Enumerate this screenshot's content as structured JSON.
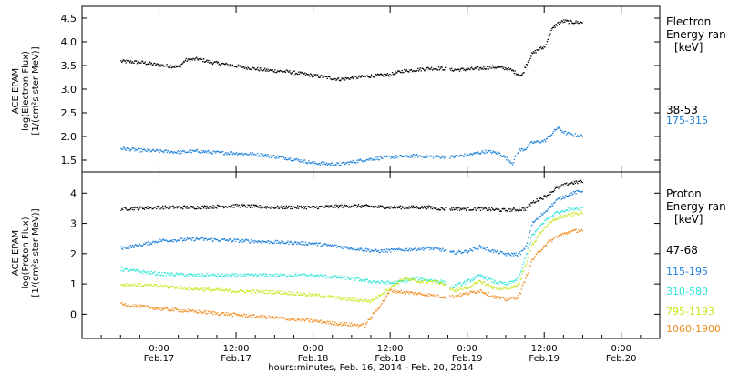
{
  "chart_data": [
    {
      "type": "scatter",
      "panel": "electron",
      "ylabel_lines": [
        "ACE EPAM",
        "log(Electron Flux)",
        "[1/(cm²s ster MeV)]"
      ],
      "ylim": [
        1.25,
        4.75
      ],
      "yticks": [
        "1.5",
        "2.0",
        "2.5",
        "3.0",
        "3.5",
        "4.0",
        "4.5"
      ],
      "legend_title": [
        "Electron",
        "Energy ran",
        "[keV]"
      ],
      "data_gaps_hours": [
        [
          44.5,
          45.2
        ]
      ],
      "series": [
        {
          "name": "38-53",
          "color": "#000000",
          "points": [
            [
              -6,
              3.6
            ],
            [
              -3,
              3.58
            ],
            [
              0,
              3.52
            ],
            [
              3,
              3.48
            ],
            [
              4,
              3.62
            ],
            [
              6,
              3.65
            ],
            [
              8,
              3.58
            ],
            [
              12,
              3.5
            ],
            [
              16,
              3.42
            ],
            [
              20,
              3.38
            ],
            [
              24,
              3.3
            ],
            [
              28,
              3.22
            ],
            [
              32,
              3.28
            ],
            [
              36,
              3.32
            ],
            [
              38,
              3.4
            ],
            [
              40,
              3.42
            ],
            [
              42,
              3.45
            ],
            [
              44,
              3.45
            ],
            [
              45.5,
              3.42
            ],
            [
              48,
              3.43
            ],
            [
              50,
              3.45
            ],
            [
              52,
              3.48
            ],
            [
              54,
              3.45
            ],
            [
              55,
              3.4
            ],
            [
              56,
              3.32
            ],
            [
              56.5,
              3.3
            ],
            [
              57,
              3.5
            ],
            [
              58,
              3.75
            ],
            [
              59,
              3.85
            ],
            [
              60,
              3.9
            ],
            [
              61,
              4.25
            ],
            [
              62,
              4.4
            ],
            [
              63,
              4.45
            ],
            [
              64,
              4.43
            ],
            [
              66,
              4.42
            ]
          ]
        },
        {
          "name": "175-315",
          "color": "#1a7fd9",
          "points": [
            [
              -6,
              1.76
            ],
            [
              -3,
              1.72
            ],
            [
              0,
              1.7
            ],
            [
              3,
              1.68
            ],
            [
              6,
              1.7
            ],
            [
              9,
              1.67
            ],
            [
              12,
              1.66
            ],
            [
              16,
              1.62
            ],
            [
              20,
              1.55
            ],
            [
              24,
              1.45
            ],
            [
              28,
              1.42
            ],
            [
              32,
              1.52
            ],
            [
              36,
              1.58
            ],
            [
              40,
              1.6
            ],
            [
              44,
              1.58
            ],
            [
              45.5,
              1.58
            ],
            [
              48,
              1.62
            ],
            [
              51,
              1.7
            ],
            [
              53,
              1.65
            ],
            [
              54,
              1.55
            ],
            [
              55,
              1.45
            ],
            [
              56,
              1.72
            ],
            [
              57,
              1.75
            ],
            [
              58,
              1.88
            ],
            [
              60,
              1.92
            ],
            [
              61,
              2.05
            ],
            [
              62,
              2.2
            ],
            [
              63,
              2.1
            ],
            [
              64,
              2.05
            ],
            [
              66,
              2.02
            ]
          ]
        }
      ]
    },
    {
      "type": "scatter",
      "panel": "proton",
      "ylabel_lines": [
        "ACE EPAM",
        "log(Proton Flux)",
        "[1/(cm²s ster MeV)]"
      ],
      "ylim": [
        -0.8,
        4.7
      ],
      "yticks": [
        "0",
        "1",
        "2",
        "3",
        "4"
      ],
      "legend_title": [
        "Proton",
        "Energy ran",
        "[keV]"
      ],
      "data_gaps_hours": [
        [
          44.5,
          45.2
        ]
      ],
      "series": [
        {
          "name": "47-68",
          "color": "#000000",
          "points": [
            [
              -6,
              3.5
            ],
            [
              0,
              3.55
            ],
            [
              6,
              3.55
            ],
            [
              12,
              3.6
            ],
            [
              18,
              3.55
            ],
            [
              24,
              3.55
            ],
            [
              30,
              3.6
            ],
            [
              36,
              3.55
            ],
            [
              42,
              3.55
            ],
            [
              44,
              3.5
            ],
            [
              45.5,
              3.5
            ],
            [
              50,
              3.5
            ],
            [
              54,
              3.45
            ],
            [
              57,
              3.5
            ],
            [
              58,
              3.7
            ],
            [
              60,
              3.9
            ],
            [
              62,
              4.2
            ],
            [
              64,
              4.35
            ],
            [
              66,
              4.4
            ]
          ]
        },
        {
          "name": "115-195",
          "color": "#1a7fd9",
          "points": [
            [
              -6,
              2.2
            ],
            [
              -3,
              2.3
            ],
            [
              0,
              2.45
            ],
            [
              6,
              2.5
            ],
            [
              12,
              2.45
            ],
            [
              18,
              2.4
            ],
            [
              24,
              2.35
            ],
            [
              30,
              2.2
            ],
            [
              34,
              2.1
            ],
            [
              38,
              2.15
            ],
            [
              42,
              2.2
            ],
            [
              44,
              2.15
            ],
            [
              45.5,
              2.05
            ],
            [
              48,
              2.1
            ],
            [
              50,
              2.25
            ],
            [
              52,
              2.1
            ],
            [
              54,
              2.0
            ],
            [
              56,
              2.0
            ],
            [
              57,
              2.2
            ],
            [
              58,
              3.0
            ],
            [
              59,
              3.2
            ],
            [
              60,
              3.4
            ],
            [
              62,
              3.8
            ],
            [
              64,
              4.0
            ],
            [
              66,
              4.1
            ]
          ]
        },
        {
          "name": "310-580",
          "color": "#2ee6d6",
          "points": [
            [
              -6,
              1.5
            ],
            [
              0,
              1.35
            ],
            [
              6,
              1.3
            ],
            [
              12,
              1.3
            ],
            [
              18,
              1.3
            ],
            [
              24,
              1.3
            ],
            [
              30,
              1.2
            ],
            [
              33,
              1.1
            ],
            [
              36,
              1.05
            ],
            [
              38,
              1.1
            ],
            [
              40,
              1.2
            ],
            [
              42,
              1.15
            ],
            [
              44,
              1.1
            ],
            [
              45.5,
              0.9
            ],
            [
              48,
              1.1
            ],
            [
              50,
              1.3
            ],
            [
              52,
              1.1
            ],
            [
              54,
              1.0
            ],
            [
              56,
              1.2
            ],
            [
              58,
              2.6
            ],
            [
              60,
              3.1
            ],
            [
              62,
              3.4
            ],
            [
              64,
              3.5
            ],
            [
              66,
              3.55
            ]
          ]
        },
        {
          "name": "795-1193",
          "color": "#c7e619",
          "points": [
            [
              -6,
              1.0
            ],
            [
              0,
              0.95
            ],
            [
              6,
              0.85
            ],
            [
              12,
              0.78
            ],
            [
              18,
              0.75
            ],
            [
              24,
              0.65
            ],
            [
              30,
              0.5
            ],
            [
              33,
              0.45
            ],
            [
              36,
              0.9
            ],
            [
              38,
              1.2
            ],
            [
              40,
              1.1
            ],
            [
              42,
              1.1
            ],
            [
              44,
              1.05
            ],
            [
              45.5,
              0.8
            ],
            [
              48,
              0.9
            ],
            [
              50,
              1.1
            ],
            [
              52,
              0.9
            ],
            [
              54,
              0.85
            ],
            [
              56,
              1.0
            ],
            [
              58,
              2.3
            ],
            [
              60,
              2.9
            ],
            [
              62,
              3.2
            ],
            [
              64,
              3.3
            ],
            [
              66,
              3.4
            ]
          ]
        },
        {
          "name": "1060-1900",
          "color": "#f08c1e",
          "points": [
            [
              -6,
              0.35
            ],
            [
              0,
              0.2
            ],
            [
              6,
              0.1
            ],
            [
              12,
              0.0
            ],
            [
              18,
              -0.1
            ],
            [
              24,
              -0.2
            ],
            [
              28,
              -0.3
            ],
            [
              32,
              -0.35
            ],
            [
              34,
              0.2
            ],
            [
              36,
              0.8
            ],
            [
              38,
              0.75
            ],
            [
              40,
              0.7
            ],
            [
              42,
              0.65
            ],
            [
              44,
              0.6
            ],
            [
              45.5,
              0.6
            ],
            [
              48,
              0.7
            ],
            [
              50,
              0.8
            ],
            [
              52,
              0.6
            ],
            [
              54,
              0.5
            ],
            [
              56,
              0.6
            ],
            [
              58,
              1.8
            ],
            [
              60,
              2.3
            ],
            [
              62,
              2.6
            ],
            [
              64,
              2.75
            ],
            [
              66,
              2.8
            ]
          ]
        }
      ]
    }
  ],
  "xaxis": {
    "title": "hours:minutes, Feb. 16, 2014 - Feb. 20, 2014",
    "ticks": [
      {
        "hour": 0,
        "time": "0:00",
        "date": "Feb.17"
      },
      {
        "hour": 12,
        "time": "12:00",
        "date": "Feb.17"
      },
      {
        "hour": 24,
        "time": "0:00",
        "date": "Feb.18"
      },
      {
        "hour": 36,
        "time": "12:00",
        "date": "Feb.18"
      },
      {
        "hour": 48,
        "time": "0:00",
        "date": "Feb.19"
      },
      {
        "hour": 60,
        "time": "12:00",
        "date": "Feb.19"
      },
      {
        "hour": 72,
        "time": "0:00",
        "date": "Feb.20"
      }
    ]
  }
}
